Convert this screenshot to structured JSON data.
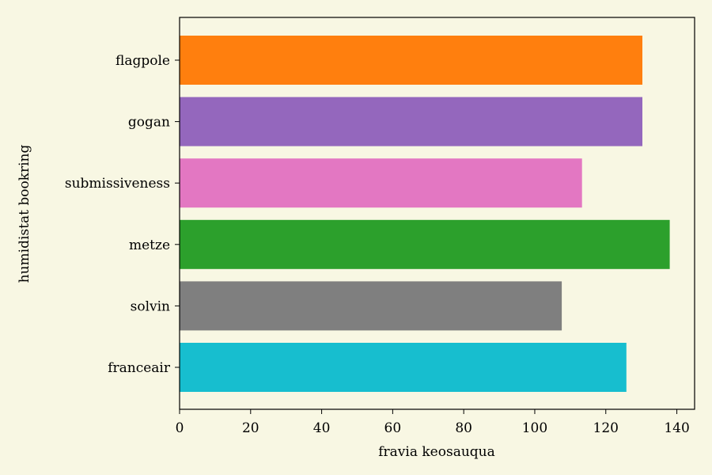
{
  "chart_data": {
    "type": "bar",
    "orientation": "horizontal",
    "title": "",
    "xlabel": "fravia keosauqua",
    "ylabel": "humidistat bookring",
    "categories": [
      "flagpole",
      "gogan",
      "submissiveness",
      "metze",
      "solvin",
      "franceair"
    ],
    "values": [
      130.3,
      130.3,
      113.3,
      138.0,
      107.6,
      125.8
    ],
    "colors": [
      "#ff7f0e",
      "#9467bd",
      "#e377c2",
      "#2ca02c",
      "#7f7f7f",
      "#17becf"
    ],
    "xlim": [
      0,
      145
    ],
    "xticks": [
      0,
      20,
      40,
      60,
      80,
      100,
      120,
      140
    ],
    "grid": false,
    "background": "#f8f7e3"
  }
}
